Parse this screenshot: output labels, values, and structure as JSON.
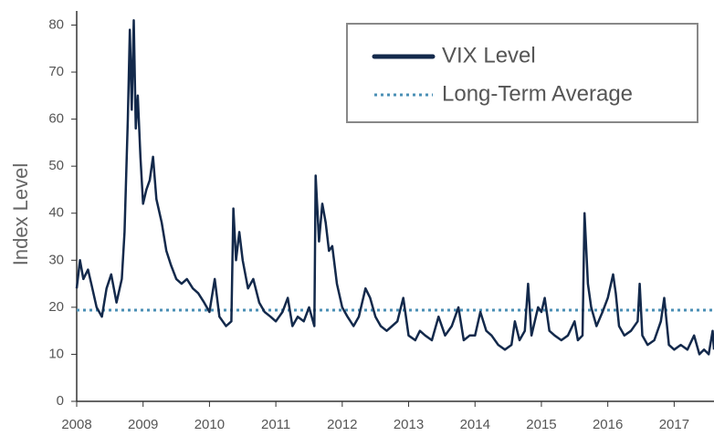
{
  "chart_data": {
    "type": "line",
    "y_label": "Index Level",
    "xlim": [
      2008,
      2017.6
    ],
    "ylim": [
      0,
      83
    ],
    "xticks": [
      2008,
      2009,
      2010,
      2011,
      2012,
      2013,
      2014,
      2015,
      2016,
      2017
    ],
    "yticks": [
      0,
      10,
      20,
      30,
      40,
      50,
      60,
      70,
      80
    ],
    "grid": false,
    "legend": "upper right",
    "x": [
      2008.0,
      2008.05,
      2008.1,
      2008.17,
      2008.22,
      2008.3,
      2008.38,
      2008.45,
      2008.52,
      2008.6,
      2008.68,
      2008.72,
      2008.77,
      2008.8,
      2008.83,
      2008.86,
      2008.89,
      2008.92,
      2008.96,
      2009.0,
      2009.05,
      2009.1,
      2009.15,
      2009.2,
      2009.28,
      2009.35,
      2009.42,
      2009.5,
      2009.58,
      2009.66,
      2009.75,
      2009.83,
      2009.92,
      2010.0,
      2010.08,
      2010.15,
      2010.25,
      2010.33,
      2010.36,
      2010.4,
      2010.45,
      2010.5,
      2010.58,
      2010.66,
      2010.75,
      2010.83,
      2010.92,
      2011.0,
      2011.1,
      2011.18,
      2011.25,
      2011.33,
      2011.42,
      2011.5,
      2011.58,
      2011.6,
      2011.65,
      2011.7,
      2011.75,
      2011.8,
      2011.85,
      2011.92,
      2012.0,
      2012.08,
      2012.17,
      2012.25,
      2012.35,
      2012.42,
      2012.5,
      2012.58,
      2012.67,
      2012.75,
      2012.83,
      2012.92,
      2013.0,
      2013.1,
      2013.17,
      2013.25,
      2013.35,
      2013.45,
      2013.55,
      2013.65,
      2013.75,
      2013.83,
      2013.92,
      2014.0,
      2014.08,
      2014.17,
      2014.25,
      2014.35,
      2014.45,
      2014.55,
      2014.6,
      2014.67,
      2014.75,
      2014.8,
      2014.85,
      2014.95,
      2015.0,
      2015.05,
      2015.12,
      2015.2,
      2015.3,
      2015.4,
      2015.5,
      2015.55,
      2015.62,
      2015.65,
      2015.7,
      2015.75,
      2015.83,
      2015.92,
      2016.0,
      2016.08,
      2016.12,
      2016.17,
      2016.25,
      2016.35,
      2016.45,
      2016.48,
      2016.52,
      2016.6,
      2016.7,
      2016.8,
      2016.85,
      2016.92,
      2017.0,
      2017.1,
      2017.2,
      2017.3,
      2017.38,
      2017.45,
      2017.52,
      2017.58,
      2017.6
    ],
    "series": [
      {
        "name": "VIX Level",
        "color": "#13294b",
        "values": [
          24,
          30,
          26,
          28,
          25,
          20,
          18,
          24,
          27,
          21,
          26,
          36,
          60,
          79,
          62,
          81,
          58,
          65,
          52,
          42,
          45,
          47,
          52,
          43,
          38,
          32,
          29,
          26,
          25,
          26,
          24,
          23,
          21,
          19,
          26,
          18,
          16,
          17,
          41,
          30,
          36,
          30,
          24,
          26,
          21,
          19,
          18,
          17,
          19,
          22,
          16,
          18,
          17,
          20,
          16,
          48,
          34,
          42,
          38,
          32,
          33,
          25,
          20,
          18,
          16,
          18,
          24,
          22,
          18,
          16,
          15,
          16,
          17,
          22,
          14,
          13,
          15,
          14,
          13,
          18,
          14,
          16,
          20,
          13,
          14,
          14,
          19,
          15,
          14,
          12,
          11,
          12,
          17,
          13,
          15,
          25,
          14,
          20,
          19,
          22,
          15,
          14,
          13,
          14,
          17,
          13,
          14,
          40,
          25,
          20,
          16,
          19,
          22,
          27,
          23,
          16,
          14,
          15,
          17,
          25,
          14,
          12,
          13,
          17,
          22,
          12,
          11,
          12,
          11,
          14,
          10,
          11,
          10,
          15,
          11
        ]
      }
    ],
    "lines": [
      {
        "name": "Long-Term Average",
        "value": 19.4,
        "color": "#4a8fb5",
        "style": "dotted"
      }
    ]
  }
}
